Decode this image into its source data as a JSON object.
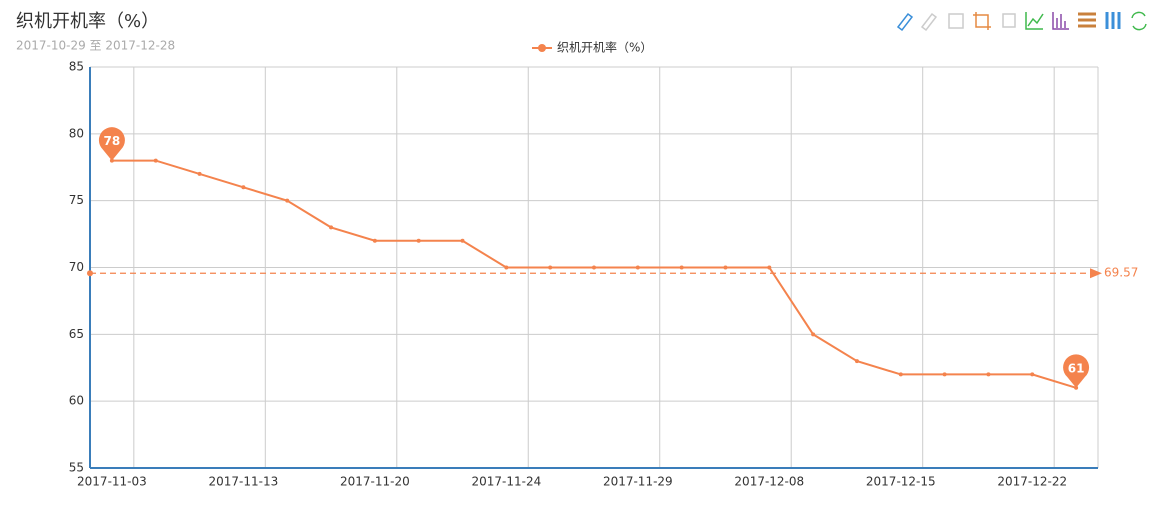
{
  "chart_data": {
    "type": "line",
    "title": "织机开机率（%）",
    "subtitle": "2017-10-29 至 2017-12-28",
    "categories": [
      "2017-11-03",
      null,
      null,
      "2017-11-13",
      null,
      null,
      "2017-11-20",
      null,
      null,
      "2017-11-24",
      null,
      null,
      "2017-11-29",
      null,
      null,
      "2017-12-08",
      null,
      null,
      "2017-12-15",
      null,
      null,
      "2017-12-22",
      null
    ],
    "series": [
      {
        "name": "织机开机率（%）",
        "color": "#f4834d",
        "values": [
          78,
          78,
          77,
          76,
          75,
          73,
          72,
          72,
          72,
          70,
          70,
          70,
          70,
          70,
          70,
          70,
          65,
          63,
          62,
          62,
          62,
          62,
          61
        ]
      }
    ],
    "average": 69.57,
    "ylim": [
      55,
      85
    ],
    "yticks": [
      55,
      60,
      65,
      70,
      75,
      80,
      85
    ],
    "grid": true
  }
}
